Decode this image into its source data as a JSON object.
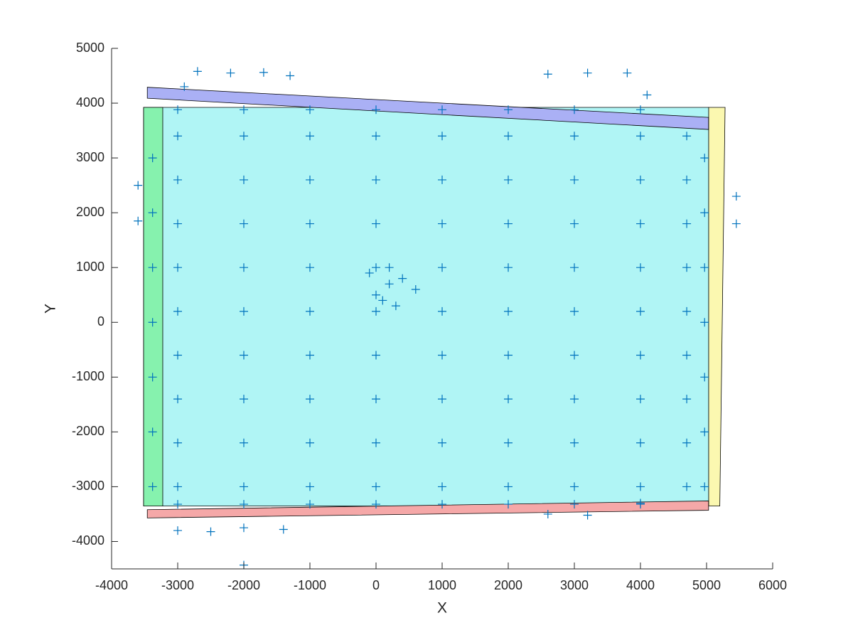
{
  "chart_data": {
    "type": "scatter",
    "x_label": "X",
    "y_label": "Y",
    "xlim": [
      -4000,
      6000
    ],
    "ylim": [
      -4500,
      5000
    ],
    "xticks": [
      -4000,
      -3000,
      -2000,
      -1000,
      0,
      1000,
      2000,
      3000,
      4000,
      5000,
      6000
    ],
    "yticks": [
      -4000,
      -3000,
      -2000,
      -1000,
      0,
      1000,
      2000,
      3000,
      4000,
      5000
    ],
    "grid": false,
    "marker_color": "#0072bd",
    "polygons": [
      {
        "color": "#b0f5f5",
        "x": [
          -3516,
          5032,
          5032,
          -3516
        ],
        "y": [
          3923,
          3923,
          -3353,
          -3353
        ]
      },
      {
        "color": "#86f2ae",
        "x": [
          -3516,
          -3226,
          -3226,
          -3516
        ],
        "y": [
          3923,
          3923,
          -3353,
          -3353
        ]
      },
      {
        "color": "#fbf8b0",
        "x": [
          5032,
          5280,
          5200,
          5032
        ],
        "y": [
          3923,
          3923,
          -3353,
          -3353
        ]
      },
      {
        "color": "#aab0f5",
        "x": [
          -3460,
          5030,
          5030,
          -3460
        ],
        "y": [
          4290,
          3740,
          3520,
          4090
        ]
      },
      {
        "color": "#f5a8a8",
        "x": [
          -3460,
          5030,
          5030,
          -3460
        ],
        "y": [
          -3420,
          -3260,
          -3430,
          -3570
        ]
      }
    ],
    "x": [
      -3000,
      -2000,
      -1000,
      0,
      1000,
      2000,
      3000,
      4000,
      4700,
      -3000,
      -2000,
      -1000,
      0,
      1000,
      2000,
      3000,
      4000,
      4700,
      -3000,
      -2000,
      -1000,
      0,
      1000,
      2000,
      3000,
      4000,
      4700,
      -3000,
      -2000,
      -1000,
      0,
      1000,
      2000,
      3000,
      4000,
      4700,
      -3000,
      -2000,
      -1000,
      0,
      1000,
      2000,
      3000,
      4000,
      4700,
      -3000,
      -2000,
      -1000,
      0,
      1000,
      2000,
      3000,
      4000,
      4700,
      -3000,
      -2000,
      -1000,
      0,
      1000,
      2000,
      3000,
      4000,
      4700,
      -3000,
      -2000,
      -1000,
      0,
      1000,
      2000,
      3000,
      4000,
      4700,
      -3000,
      -2000,
      -1000,
      0,
      1000,
      2000,
      3000,
      4000,
      4700,
      -3000,
      -2000,
      -1000,
      0,
      1000,
      2000,
      3000,
      4000,
      -3000,
      -2000,
      -1000,
      0,
      1000,
      2000,
      3000,
      4000,
      -3380,
      -3380,
      -3380,
      -3380,
      -3380,
      -3380,
      -3380,
      4970,
      4970,
      4970,
      4970,
      4970,
      4970,
      4970,
      -2900,
      -2700,
      -2200,
      -1700,
      -1300,
      2600,
      3200,
      3800,
      4100,
      -3600,
      -3600,
      5450,
      5450,
      -3000,
      -2500,
      -2000,
      -1400,
      -2000,
      2600,
      3200,
      4000,
      200,
      0,
      400,
      300,
      -100,
      600,
      200,
      100
    ],
    "y": [
      -3000,
      -3000,
      -3000,
      -3000,
      -3000,
      -3000,
      -3000,
      -3000,
      -3000,
      -2200,
      -2200,
      -2200,
      -2200,
      -2200,
      -2200,
      -2200,
      -2200,
      -2200,
      -1400,
      -1400,
      -1400,
      -1400,
      -1400,
      -1400,
      -1400,
      -1400,
      -1400,
      -600,
      -600,
      -600,
      -600,
      -600,
      -600,
      -600,
      -600,
      -600,
      200,
      200,
      200,
      200,
      200,
      200,
      200,
      200,
      200,
      1000,
      1000,
      1000,
      1000,
      1000,
      1000,
      1000,
      1000,
      1000,
      1800,
      1800,
      1800,
      1800,
      1800,
      1800,
      1800,
      1800,
      1800,
      2600,
      2600,
      2600,
      2600,
      2600,
      2600,
      2600,
      2600,
      2600,
      3400,
      3400,
      3400,
      3400,
      3400,
      3400,
      3400,
      3400,
      3400,
      3880,
      3880,
      3880,
      3880,
      3880,
      3880,
      3880,
      3880,
      -3320,
      -3320,
      -3320,
      -3320,
      -3320,
      -3320,
      -3320,
      -3320,
      -3000,
      -2000,
      -1000,
      0,
      1000,
      2000,
      3000,
      -3000,
      -2000,
      -1000,
      0,
      1000,
      2000,
      3000,
      4300,
      4580,
      4550,
      4560,
      4500,
      4530,
      4550,
      4550,
      4150,
      2500,
      1850,
      2300,
      1800,
      -3800,
      -3820,
      -3750,
      -3780,
      -4430,
      -3500,
      -3520,
      -3300,
      700,
      500,
      800,
      300,
      900,
      600,
      1000,
      400
    ]
  }
}
